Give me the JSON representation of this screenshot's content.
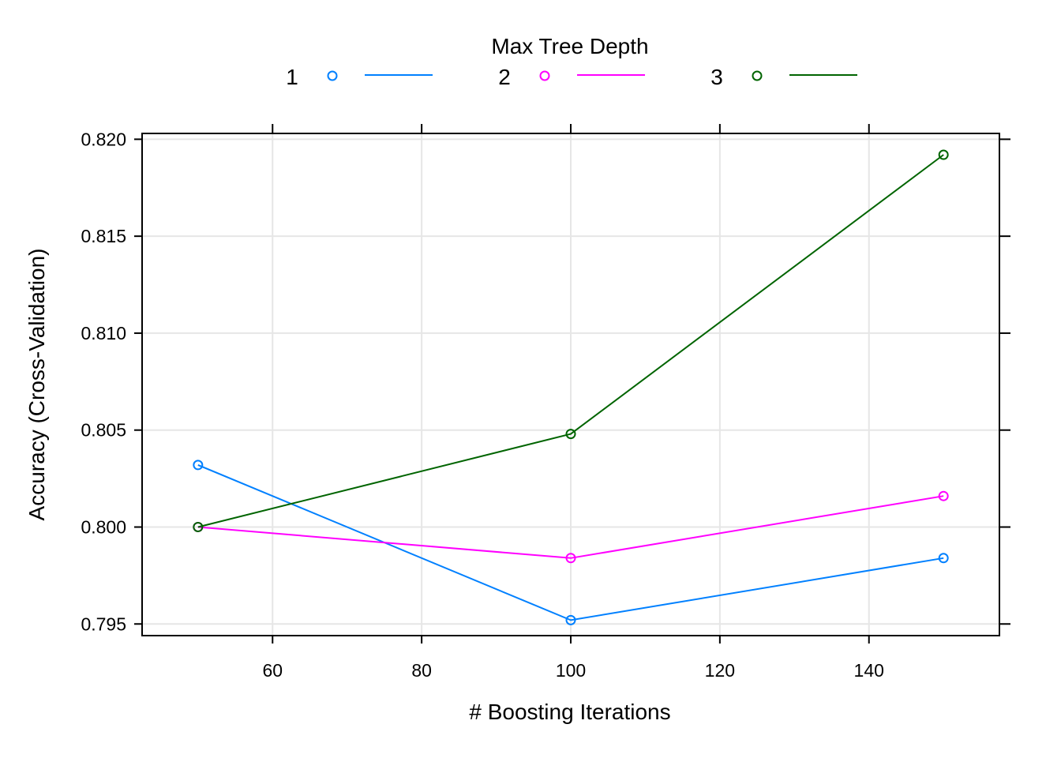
{
  "chart_data": {
    "type": "line",
    "xlabel": "# Boosting Iterations",
    "ylabel": "Accuracy (Cross-Validation)",
    "xlim": [
      42.5,
      157.5
    ],
    "ylim": [
      0.7944,
      0.8203
    ],
    "x_ticks": [
      60,
      80,
      100,
      120,
      140
    ],
    "y_ticks": [
      0.795,
      0.8,
      0.805,
      0.81,
      0.815,
      0.82
    ],
    "x_tick_labels": [
      "60",
      "80",
      "100",
      "120",
      "140"
    ],
    "y_tick_labels": [
      "0.795",
      "0.800",
      "0.805",
      "0.810",
      "0.815",
      "0.820"
    ],
    "grid": true,
    "legend": {
      "title": "Max Tree Depth",
      "position": "top"
    },
    "x": [
      50,
      100,
      150
    ],
    "series": [
      {
        "name": "1",
        "color": "#0080ff",
        "values": [
          0.8032,
          0.7952,
          0.7984
        ]
      },
      {
        "name": "2",
        "color": "#ff00ff",
        "values": [
          0.8,
          0.7984,
          0.8016
        ]
      },
      {
        "name": "3",
        "color": "#006400",
        "values": [
          0.8,
          0.8048,
          0.8192
        ]
      }
    ]
  }
}
